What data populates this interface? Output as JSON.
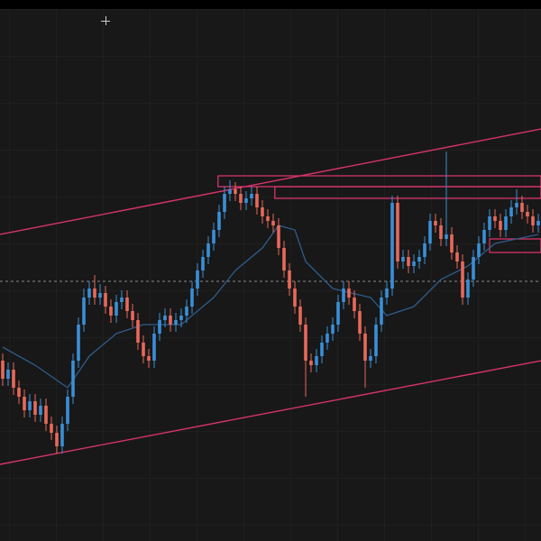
{
  "chart_data": {
    "type": "candlestick",
    "xlim": [
      -0.5,
      99.5
    ],
    "ylim": [
      0,
      600
    ],
    "up_color": "#3a8fd6",
    "down_color": "#e8695a",
    "open": [
      200,
      180,
      190,
      170,
      160,
      145,
      155,
      140,
      150,
      130,
      120,
      105,
      130,
      160,
      200,
      240,
      270,
      280,
      270,
      275,
      260,
      250,
      265,
      270,
      255,
      245,
      220,
      205,
      200,
      230,
      245,
      250,
      240,
      245,
      250,
      260,
      280,
      300,
      315,
      330,
      345,
      365,
      385,
      390,
      385,
      375,
      380,
      385,
      370,
      360,
      355,
      350,
      325,
      300,
      280,
      260,
      240,
      200,
      195,
      205,
      220,
      230,
      240,
      265,
      280,
      270,
      255,
      230,
      200,
      205,
      240,
      270,
      280,
      375,
      310,
      315,
      305,
      310,
      315,
      330,
      355,
      350,
      335,
      340,
      320,
      310,
      270,
      290,
      315,
      330,
      345,
      360,
      355,
      345,
      360,
      370,
      375,
      365,
      360,
      350
    ],
    "high": [
      208,
      198,
      198,
      178,
      168,
      163,
      163,
      158,
      158,
      138,
      128,
      138,
      168,
      208,
      248,
      280,
      288,
      295,
      285,
      283,
      268,
      273,
      278,
      278,
      263,
      253,
      228,
      213,
      238,
      253,
      258,
      258,
      253,
      258,
      268,
      288,
      308,
      323,
      338,
      353,
      373,
      393,
      400,
      398,
      393,
      388,
      393,
      393,
      378,
      368,
      363,
      358,
      333,
      308,
      288,
      268,
      248,
      208,
      213,
      228,
      238,
      248,
      273,
      288,
      288,
      278,
      263,
      238,
      213,
      248,
      278,
      288,
      383,
      383,
      323,
      323,
      318,
      323,
      338,
      363,
      363,
      358,
      432,
      348,
      328,
      318,
      298,
      323,
      338,
      353,
      368,
      368,
      363,
      368,
      378,
      390,
      383,
      373,
      368,
      363
    ],
    "low": [
      172,
      172,
      162,
      152,
      137,
      137,
      132,
      132,
      122,
      112,
      97,
      97,
      122,
      152,
      192,
      232,
      262,
      262,
      262,
      252,
      242,
      242,
      257,
      247,
      237,
      212,
      197,
      192,
      192,
      222,
      237,
      232,
      232,
      237,
      242,
      252,
      272,
      292,
      307,
      322,
      337,
      357,
      377,
      377,
      367,
      367,
      372,
      362,
      352,
      347,
      342,
      317,
      292,
      272,
      252,
      232,
      160,
      187,
      187,
      197,
      212,
      222,
      232,
      257,
      262,
      247,
      222,
      170,
      192,
      197,
      232,
      262,
      272,
      302,
      302,
      297,
      297,
      302,
      307,
      322,
      342,
      327,
      327,
      312,
      302,
      262,
      262,
      282,
      307,
      322,
      337,
      347,
      337,
      337,
      352,
      362,
      357,
      352,
      342,
      342
    ],
    "close": [
      180,
      190,
      170,
      160,
      145,
      155,
      140,
      150,
      130,
      120,
      105,
      130,
      160,
      200,
      240,
      270,
      280,
      270,
      275,
      260,
      250,
      265,
      270,
      255,
      245,
      220,
      205,
      200,
      230,
      245,
      250,
      240,
      245,
      250,
      260,
      280,
      300,
      315,
      330,
      345,
      365,
      385,
      390,
      385,
      375,
      380,
      385,
      370,
      360,
      355,
      350,
      325,
      300,
      280,
      260,
      240,
      200,
      195,
      205,
      220,
      230,
      240,
      265,
      280,
      270,
      255,
      230,
      200,
      205,
      240,
      270,
      280,
      375,
      310,
      315,
      305,
      310,
      315,
      330,
      355,
      350,
      335,
      340,
      320,
      310,
      270,
      290,
      315,
      330,
      345,
      360,
      355,
      345,
      360,
      370,
      375,
      365,
      360,
      350,
      355
    ],
    "moving_average": {
      "color": "#2f5c8a",
      "x": [
        0,
        6,
        12,
        16,
        21,
        26,
        33,
        39,
        43,
        48,
        51,
        54,
        56,
        61,
        68,
        71,
        76,
        81,
        86,
        91,
        99
      ],
      "values": [
        215,
        195,
        170,
        205,
        230,
        240,
        240,
        270,
        300,
        325,
        350,
        345,
        310,
        280,
        270,
        250,
        260,
        290,
        305,
        330,
        340
      ]
    },
    "trendlines": [
      {
        "color": "#d6336c",
        "x": [
          -0.5,
          99.5
        ],
        "y": [
          340,
          457
        ]
      },
      {
        "color": "#d6336c",
        "x": [
          -0.5,
          99.5
        ],
        "y": [
          85,
          200
        ]
      }
    ],
    "zones": [
      {
        "color": "#d6336c",
        "x": [
          39.8,
          99.5
        ],
        "y": [
          393,
          405
        ]
      },
      {
        "color": "#d6336c",
        "x": [
          50.3,
          99.5
        ],
        "y": [
          380,
          393
        ]
      },
      {
        "color": "#d6336c",
        "x": [
          90,
          99.5
        ],
        "y": [
          320,
          335
        ]
      }
    ],
    "level": {
      "value": 288,
      "color": "#8a8a8a"
    }
  }
}
